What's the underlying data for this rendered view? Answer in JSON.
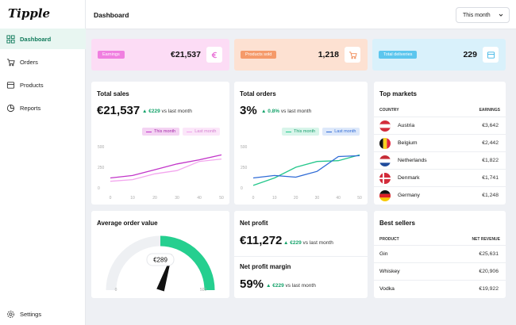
{
  "app": {
    "logo": "Tipple"
  },
  "sidebar": {
    "items": [
      {
        "label": "Dashboard",
        "icon": "grid-icon",
        "active": true
      },
      {
        "label": "Orders",
        "icon": "cart-icon"
      },
      {
        "label": "Products",
        "icon": "box-icon"
      },
      {
        "label": "Reports",
        "icon": "pie-chart-icon"
      }
    ],
    "settings": {
      "label": "Settings",
      "icon": "gear-icon"
    }
  },
  "header": {
    "title": "Dashboard",
    "period": "This month"
  },
  "kpis": [
    {
      "label": "Earnings",
      "value": "€21,537",
      "icon": "euro-icon",
      "bg": "#fcdcf5",
      "tag": "#f07fe0",
      "accent": "#e55fd1"
    },
    {
      "label": "Products sold",
      "value": "1,218",
      "icon": "cart-icon",
      "bg": "#fde1d2",
      "tag": "#f59a6a",
      "accent": "#f08a55"
    },
    {
      "label": "Total deliveries",
      "value": "229",
      "icon": "box-icon",
      "bg": "#d9f1fb",
      "tag": "#5cc6ee",
      "accent": "#3fb6e6"
    }
  ],
  "total_sales": {
    "title": "Total sales",
    "value": "€21,537",
    "delta": "€229",
    "delta_suffix": "vs last month",
    "legend": [
      "This month",
      "Last month"
    ]
  },
  "total_orders": {
    "title": "Total orders",
    "value": "3%",
    "delta": "0.8%",
    "delta_suffix": "vs last month",
    "legend": [
      "This month",
      "Last month"
    ]
  },
  "top_markets": {
    "title": "Top markets",
    "col_country": "COUNTRY",
    "col_earnings": "EARNINGS",
    "rows": [
      {
        "country": "Austria",
        "earnings": "€3,642",
        "flag": "austria-flag"
      },
      {
        "country": "Belgium",
        "earnings": "€2,442",
        "flag": "belgium-flag"
      },
      {
        "country": "Netherlands",
        "earnings": "€1,822",
        "flag": "netherlands-flag"
      },
      {
        "country": "Denmark",
        "earnings": "€1,741",
        "flag": "denmark-flag"
      },
      {
        "country": "Germany",
        "earnings": "€1,248",
        "flag": "germany-flag"
      }
    ]
  },
  "avg_order": {
    "title": "Average order value",
    "value": "€289",
    "min_label": "0",
    "max_label": "500",
    "fraction": 0.6
  },
  "net_profit": {
    "title": "Net profit",
    "value": "€11,272",
    "delta": "€229",
    "delta_suffix": "vs last month"
  },
  "net_margin": {
    "title": "Net profit margin",
    "value": "59%",
    "delta": "€229",
    "delta_suffix": "vs last month"
  },
  "best_sellers": {
    "title": "Best sellers",
    "col_product": "PRODUCT",
    "col_revenue": "NET REVENUE",
    "rows": [
      {
        "product": "Gin",
        "revenue": "€25,631"
      },
      {
        "product": "Whiskey",
        "revenue": "€20,906"
      },
      {
        "product": "Vodka",
        "revenue": "€19,922"
      }
    ]
  },
  "chart_data": [
    {
      "type": "line",
      "x": [
        "0",
        "10",
        "20",
        "30",
        "40",
        "50"
      ],
      "y_ticks": [
        "0",
        "250",
        "500"
      ],
      "ylim": [
        0,
        500
      ],
      "series": [
        {
          "name": "This month",
          "color": "#c235c9",
          "x": [
            0,
            10,
            20,
            30,
            40,
            50
          ],
          "y": [
            120,
            150,
            220,
            290,
            340,
            400
          ]
        },
        {
          "name": "Last month",
          "color": "#f3a6ee",
          "x": [
            0,
            10,
            20,
            30,
            40,
            50
          ],
          "y": [
            80,
            100,
            170,
            210,
            320,
            350
          ]
        }
      ]
    },
    {
      "type": "line",
      "x": [
        "0",
        "10",
        "20",
        "30",
        "40",
        "50"
      ],
      "y_ticks": [
        "0",
        "250",
        "500"
      ],
      "ylim": [
        0,
        500
      ],
      "series": [
        {
          "name": "This month",
          "color": "#25c78c",
          "x": [
            0,
            10,
            20,
            30,
            40,
            50
          ],
          "y": [
            30,
            120,
            250,
            320,
            330,
            400
          ]
        },
        {
          "name": "Last month",
          "color": "#2f6bd6",
          "x": [
            0,
            10,
            20,
            30,
            40,
            50
          ],
          "y": [
            120,
            150,
            130,
            200,
            380,
            390
          ]
        }
      ]
    }
  ]
}
